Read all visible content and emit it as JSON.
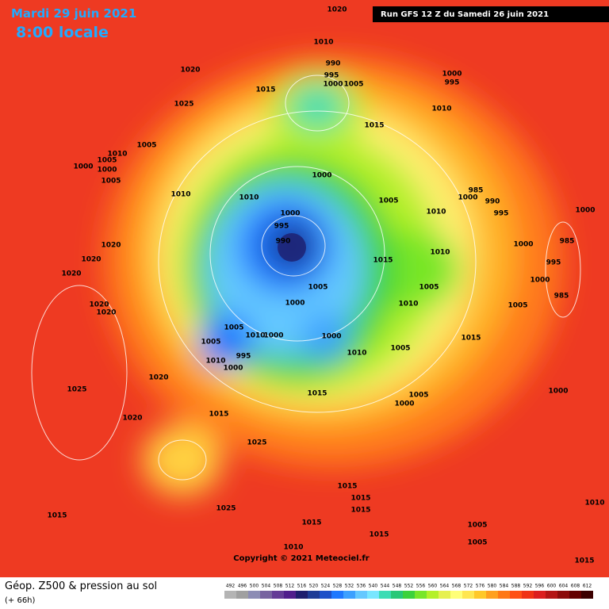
{
  "header": {
    "date": "Mardi 29 juin 2021",
    "time": "8:00 locale",
    "run": "Run GFS 12 Z du Samedi 26 juin 2021"
  },
  "footer": {
    "title": "Géop. Z500 & pression au sol",
    "lead": "(+ 66h)",
    "copyright": "Copyright © 2021 Meteociel.fr"
  },
  "legend": {
    "values": [
      492,
      496,
      500,
      504,
      508,
      512,
      516,
      520,
      524,
      528,
      532,
      536,
      540,
      544,
      548,
      552,
      556,
      560,
      564,
      568,
      572,
      576,
      580,
      584,
      588,
      592,
      596,
      600,
      604,
      608,
      612
    ],
    "colors": [
      "#b4b4b4",
      "#a0a0a0",
      "#8c8cb4",
      "#7864a0",
      "#643c96",
      "#501e8c",
      "#1e1e6e",
      "#1e3c96",
      "#1e50c8",
      "#1e78ff",
      "#3ca0ff",
      "#64c8ff",
      "#78e6ff",
      "#3cdcb4",
      "#28c878",
      "#3cd23c",
      "#78e628",
      "#b4f028",
      "#e6f050",
      "#ffff78",
      "#ffe650",
      "#ffc828",
      "#ffa01e",
      "#ff7814",
      "#ff5014",
      "#f03214",
      "#dc1e1e",
      "#b41414",
      "#8c0a0a",
      "#640000",
      "#3c0000"
    ]
  },
  "isobar_labels": [
    1020,
    1010,
    990,
    995,
    1000,
    1005,
    1000,
    995,
    1015,
    1020,
    1025,
    1010,
    1015,
    1010,
    1005,
    1000,
    1005,
    1000,
    1005,
    1010,
    1000,
    1010,
    985,
    1000,
    990,
    995,
    1005,
    1010,
    1000,
    1000,
    995,
    990,
    1020,
    1020,
    985,
    1000,
    1010,
    1015,
    995,
    1000,
    1005,
    1005,
    1020,
    985,
    1000,
    1010,
    1005,
    1020,
    1020,
    1005,
    1015,
    1000,
    1010,
    1000,
    1005,
    995,
    1010,
    1000,
    1010,
    1005,
    1020,
    1025,
    1015,
    1005,
    1000,
    1000,
    1015,
    1020,
    1025,
    1015,
    1015,
    1015,
    1025,
    1015,
    1015,
    1015,
    1005,
    1005,
    1010,
    1010,
    1015
  ]
}
